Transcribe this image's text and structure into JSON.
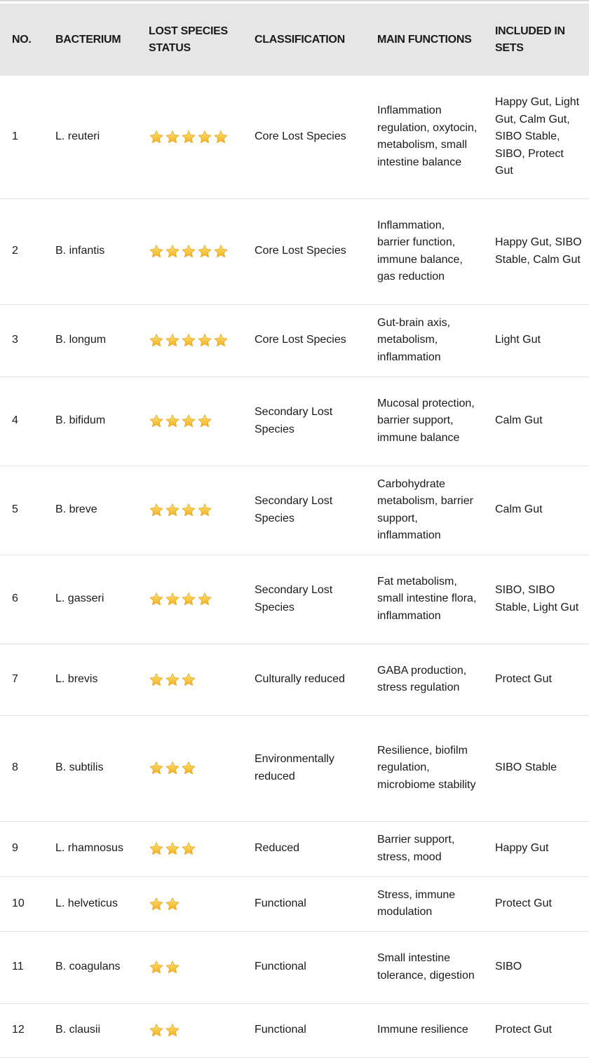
{
  "headers": [
    "NO.",
    "BACTERIUM",
    "LOST SPECIES STATUS",
    "CLASSIFICATION",
    "MAIN FUNCTIONS",
    "INCLUDED IN SETS"
  ],
  "star_icon": "star-emoji",
  "star_color": "#f7c531",
  "rows": [
    {
      "no": "1",
      "bacterium": "L. reuteri",
      "stars": 5,
      "classification": "Core Lost Species",
      "functions": "Inflammation regulation, oxytocin, metabolism, small intestine balance",
      "sets": "Happy Gut, Light Gut, Calm Gut, SIBO Stable, SIBO, Protect Gut"
    },
    {
      "no": "2",
      "bacterium": "B. infantis",
      "stars": 5,
      "classification": "Core Lost Species",
      "functions": "Inflammation, barrier function, immune balance, gas reduction",
      "sets": "Happy Gut, SIBO Stable, Calm Gut"
    },
    {
      "no": "3",
      "bacterium": "B. longum",
      "stars": 5,
      "classification": "Core Lost Species",
      "functions": "Gut-brain axis, metabolism, inflammation",
      "sets": "Light Gut"
    },
    {
      "no": "4",
      "bacterium": "B. bifidum",
      "stars": 4,
      "classification": "Secondary Lost Species",
      "functions": "Mucosal protection, barrier support, immune balance",
      "sets": "Calm Gut"
    },
    {
      "no": "5",
      "bacterium": "B. breve",
      "stars": 4,
      "classification": "Secondary Lost Species",
      "functions": "Carbohydrate metabolism, barrier support, inflammation",
      "sets": "Calm Gut"
    },
    {
      "no": "6",
      "bacterium": "L. gasseri",
      "stars": 4,
      "classification": "Secondary Lost Species",
      "functions": "Fat metabolism, small intestine flora, inflammation",
      "sets": "SIBO, SIBO Stable, Light Gut"
    },
    {
      "no": "7",
      "bacterium": "L. brevis",
      "stars": 3,
      "classification": "Culturally reduced",
      "functions": "GABA production, stress regulation",
      "sets": "Protect Gut"
    },
    {
      "no": "8",
      "bacterium": "B. subtilis",
      "stars": 3,
      "classification": "Environmentally reduced",
      "functions": "Resilience, biofilm regulation, microbiome stability",
      "sets": "SIBO Stable"
    },
    {
      "no": "9",
      "bacterium": "L. rhamnosus",
      "stars": 3,
      "classification": "Reduced",
      "functions": "Barrier support, stress, mood",
      "sets": "Happy Gut"
    },
    {
      "no": "10",
      "bacterium": "L. helveticus",
      "stars": 2,
      "classification": "Functional",
      "functions": "Stress, immune modulation",
      "sets": "Protect Gut"
    },
    {
      "no": "11",
      "bacterium": "B. coagulans",
      "stars": 2,
      "classification": "Functional",
      "functions": "Small intestine tolerance, digestion",
      "sets": "SIBO"
    },
    {
      "no": "12",
      "bacterium": "B. clausii",
      "stars": 2,
      "classification": "Functional",
      "functions": "Immune resilience",
      "sets": "Protect Gut"
    }
  ]
}
